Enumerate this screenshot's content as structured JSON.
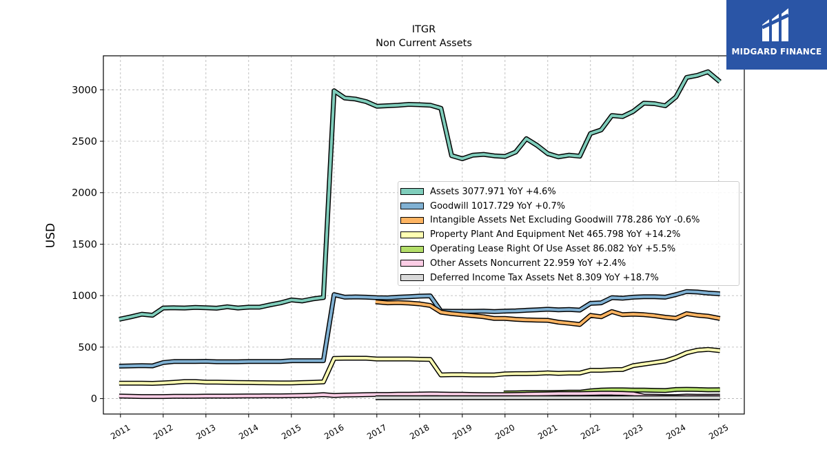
{
  "brand": {
    "name": "MIDGARD FINANCE",
    "bg_color": "#2a55a6"
  },
  "chart_data": {
    "type": "line",
    "title": "ITGR",
    "subtitle": "Non Current  Assets",
    "ylabel": "USD",
    "xlabel": "",
    "xlim": [
      2010.6,
      2025.6
    ],
    "ylim": [
      -150,
      3330
    ],
    "yticks": [
      0,
      500,
      1000,
      1500,
      2000,
      2500,
      3000
    ],
    "xticks": [
      "2011",
      "2012",
      "2013",
      "2014",
      "2015",
      "2016",
      "2017",
      "2018",
      "2019",
      "2020",
      "2021",
      "2022",
      "2023",
      "2024",
      "2025"
    ],
    "grid": true,
    "legend_position": "center-right",
    "series": [
      {
        "name": "Assets",
        "legend_label": "Assets  3077.971 YoY +4.6%",
        "color": "#7fcdbb",
        "x": [
          2010.97,
          2011.25,
          2011.5,
          2011.75,
          2012.0,
          2012.25,
          2012.5,
          2012.75,
          2013.0,
          2013.25,
          2013.5,
          2013.75,
          2014.0,
          2014.25,
          2014.5,
          2014.75,
          2015.0,
          2015.25,
          2015.5,
          2015.75,
          2016.0,
          2016.25,
          2016.5,
          2016.75,
          2017.0,
          2017.25,
          2017.5,
          2017.75,
          2018.0,
          2018.25,
          2018.5,
          2018.75,
          2019.0,
          2019.25,
          2019.5,
          2019.75,
          2020.0,
          2020.25,
          2020.5,
          2020.75,
          2021.0,
          2021.25,
          2021.5,
          2021.75,
          2022.0,
          2022.25,
          2022.5,
          2022.75,
          2023.0,
          2023.25,
          2023.5,
          2023.75,
          2024.0,
          2024.25,
          2024.5,
          2024.75,
          2025.03
        ],
        "values": [
          770,
          795,
          820,
          810,
          880,
          882,
          880,
          885,
          882,
          878,
          892,
          880,
          888,
          888,
          910,
          930,
          958,
          948,
          968,
          982,
          2990,
          2920,
          2910,
          2885,
          2840,
          2845,
          2850,
          2858,
          2855,
          2850,
          2820,
          2360,
          2330,
          2365,
          2372,
          2358,
          2352,
          2395,
          2525,
          2460,
          2380,
          2348,
          2365,
          2355,
          2575,
          2610,
          2750,
          2740,
          2790,
          2870,
          2865,
          2845,
          2930,
          3120,
          3140,
          3175,
          3078
        ]
      },
      {
        "name": "Goodwill",
        "legend_label": "Goodwill  1017.729 YoY +0.7%",
        "color": "#80b1d3",
        "x": [
          2010.97,
          2011.25,
          2011.5,
          2011.75,
          2012.0,
          2012.25,
          2012.5,
          2012.75,
          2013.0,
          2013.25,
          2013.5,
          2013.75,
          2014.0,
          2014.25,
          2014.5,
          2014.75,
          2015.0,
          2015.25,
          2015.5,
          2015.75,
          2016.0,
          2016.25,
          2016.5,
          2016.75,
          2017.0,
          2017.25,
          2017.5,
          2017.75,
          2018.0,
          2018.25,
          2018.5,
          2018.75,
          2019.0,
          2019.25,
          2019.5,
          2019.75,
          2020.0,
          2020.25,
          2020.5,
          2020.75,
          2021.0,
          2021.25,
          2021.5,
          2021.75,
          2022.0,
          2022.25,
          2022.5,
          2022.75,
          2023.0,
          2023.25,
          2023.5,
          2023.75,
          2024.0,
          2024.25,
          2024.5,
          2024.75,
          2025.03
        ],
        "values": [
          315,
          318,
          320,
          318,
          350,
          360,
          360,
          360,
          362,
          358,
          358,
          358,
          360,
          360,
          360,
          360,
          368,
          368,
          368,
          368,
          1010,
          985,
          988,
          985,
          980,
          978,
          985,
          990,
          995,
          998,
          850,
          848,
          848,
          848,
          850,
          845,
          850,
          852,
          858,
          862,
          868,
          862,
          865,
          860,
          925,
          930,
          980,
          975,
          985,
          990,
          990,
          985,
          1010,
          1040,
          1035,
          1025,
          1018
        ]
      },
      {
        "name": "Intangible Assets Net Excluding Goodwill",
        "legend_label": "Intangible Assets Net Excluding Goodwill  778.286 YoY -0.6%",
        "color": "#fdb462",
        "x": [
          2016.97,
          2017.25,
          2017.5,
          2017.75,
          2018.0,
          2018.25,
          2018.5,
          2018.75,
          2019.0,
          2019.25,
          2019.5,
          2019.75,
          2020.0,
          2020.25,
          2020.5,
          2020.75,
          2021.0,
          2021.25,
          2021.5,
          2021.75,
          2022.0,
          2022.25,
          2022.5,
          2022.75,
          2023.0,
          2023.25,
          2023.5,
          2023.75,
          2024.0,
          2024.25,
          2024.5,
          2024.75,
          2025.03
        ],
        "values": [
          940,
          930,
          932,
          928,
          920,
          905,
          840,
          825,
          815,
          805,
          795,
          778,
          778,
          770,
          765,
          762,
          760,
          742,
          732,
          720,
          808,
          795,
          845,
          815,
          820,
          815,
          805,
          790,
          780,
          825,
          810,
          800,
          778
        ]
      },
      {
        "name": "Property Plant And Equipment Net",
        "legend_label": "Property Plant And Equipment Net  465.798 YoY +14.2%",
        "color": "#ffffb3",
        "x": [
          2010.97,
          2011.25,
          2011.5,
          2011.75,
          2012.0,
          2012.25,
          2012.5,
          2012.75,
          2013.0,
          2013.25,
          2013.5,
          2013.75,
          2014.0,
          2014.25,
          2014.5,
          2014.75,
          2015.0,
          2015.25,
          2015.5,
          2015.75,
          2016.0,
          2016.25,
          2016.5,
          2016.75,
          2017.0,
          2017.25,
          2017.5,
          2017.75,
          2018.0,
          2018.25,
          2018.5,
          2018.75,
          2019.0,
          2019.25,
          2019.5,
          2019.75,
          2020.0,
          2020.25,
          2020.5,
          2020.75,
          2021.0,
          2021.25,
          2021.5,
          2021.75,
          2022.0,
          2022.25,
          2022.5,
          2022.75,
          2023.0,
          2023.25,
          2023.5,
          2023.75,
          2024.0,
          2024.25,
          2024.5,
          2024.75,
          2025.03
        ],
        "values": [
          150,
          150,
          150,
          148,
          152,
          158,
          165,
          165,
          160,
          160,
          158,
          156,
          155,
          154,
          153,
          152,
          152,
          155,
          158,
          162,
          390,
          392,
          392,
          392,
          385,
          385,
          385,
          385,
          382,
          380,
          230,
          232,
          232,
          230,
          230,
          230,
          240,
          242,
          242,
          245,
          250,
          245,
          248,
          248,
          275,
          275,
          280,
          282,
          320,
          335,
          350,
          365,
          400,
          445,
          470,
          478,
          466
        ]
      },
      {
        "name": "Operating Lease Right Of Use Asset",
        "legend_label": "Operating Lease Right Of Use Asset  86.082 YoY +5.5%",
        "color": "#b3de69",
        "x": [
          2019.97,
          2020.25,
          2020.5,
          2020.75,
          2021.0,
          2021.25,
          2021.5,
          2021.75,
          2022.0,
          2022.25,
          2022.5,
          2022.75,
          2023.0,
          2023.25,
          2023.5,
          2023.75,
          2024.0,
          2024.25,
          2024.5,
          2024.75,
          2025.03
        ],
        "values": [
          55,
          56,
          58,
          58,
          58,
          60,
          62,
          62,
          75,
          82,
          85,
          85,
          83,
          82,
          80,
          78,
          88,
          90,
          88,
          85,
          86
        ]
      },
      {
        "name": "Other Assets Noncurrent",
        "legend_label": "Other Assets Noncurrent  22.959 YoY +2.4%",
        "color": "#fccde5",
        "x": [
          2010.97,
          2011.25,
          2011.5,
          2011.75,
          2012.0,
          2012.25,
          2012.5,
          2012.75,
          2013.0,
          2013.25,
          2013.5,
          2013.75,
          2014.0,
          2014.25,
          2014.5,
          2014.75,
          2015.0,
          2015.25,
          2015.5,
          2015.75,
          2016.0,
          2016.25,
          2016.5,
          2016.75,
          2017.0,
          2017.25,
          2017.5,
          2017.75,
          2018.0,
          2018.25,
          2018.5,
          2018.75,
          2019.0,
          2019.25,
          2019.5,
          2019.75,
          2020.0,
          2020.25,
          2020.5,
          2020.75,
          2021.0,
          2021.25,
          2021.5,
          2021.75,
          2022.0,
          2022.25,
          2022.5,
          2022.75,
          2023.0,
          2023.25,
          2023.5,
          2023.75,
          2024.0,
          2024.25,
          2024.5,
          2024.75,
          2025.03
        ],
        "values": [
          25,
          22,
          20,
          20,
          20,
          22,
          22,
          22,
          24,
          24,
          24,
          25,
          26,
          26,
          27,
          27,
          28,
          30,
          32,
          38,
          30,
          34,
          36,
          38,
          40,
          40,
          42,
          42,
          44,
          46,
          44,
          42,
          42,
          40,
          38,
          38,
          38,
          40,
          42,
          44,
          46,
          48,
          48,
          48,
          50,
          52,
          52,
          50,
          46,
          24,
          22,
          20,
          20,
          24,
          22,
          22,
          23
        ]
      },
      {
        "name": "Deferred Income Tax Assets Net",
        "legend_label": "Deferred Income Tax Assets Net  8.309 YoY +18.7%",
        "color": "#d9d9d9",
        "x": [
          2016.97,
          2017.5,
          2018.0,
          2018.5,
          2019.0,
          2019.5,
          2020.0,
          2020.5,
          2021.0,
          2021.5,
          2022.0,
          2022.5,
          2023.0,
          2023.5,
          2024.0,
          2024.5,
          2025.03
        ],
        "values": [
          8,
          8,
          8,
          8,
          8,
          8,
          8,
          8,
          8,
          8,
          8,
          8,
          8,
          8,
          8,
          8,
          8
        ]
      }
    ]
  }
}
